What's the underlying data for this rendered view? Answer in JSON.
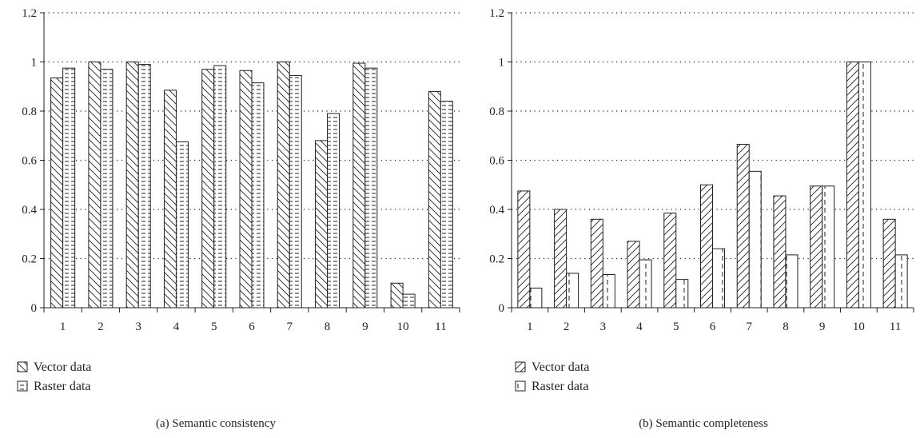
{
  "chart_data": [
    {
      "type": "bar",
      "caption": "(a)  Semantic consistency",
      "categories": [
        "1",
        "2",
        "3",
        "4",
        "5",
        "6",
        "7",
        "8",
        "9",
        "10",
        "11"
      ],
      "series": [
        {
          "name": "Vector data",
          "values": [
            0.935,
            1.0,
            1.0,
            0.885,
            0.97,
            0.965,
            1.0,
            0.68,
            0.995,
            0.1,
            0.88
          ]
        },
        {
          "name": "Raster data",
          "values": [
            0.975,
            0.97,
            0.99,
            0.675,
            0.985,
            0.915,
            0.945,
            0.79,
            0.975,
            0.055,
            0.84
          ]
        }
      ],
      "ylim": [
        0,
        1.2
      ],
      "yticks": [
        "0",
        "0.2",
        "0.4",
        "0.6",
        "0.8",
        "1",
        "1.2"
      ],
      "grid": "horizontal dotted",
      "legend_position": "bottom-left"
    },
    {
      "type": "bar",
      "caption": "(b)  Semantic completeness",
      "categories": [
        "1",
        "2",
        "3",
        "4",
        "5",
        "6",
        "7",
        "8",
        "9",
        "10",
        "11"
      ],
      "series": [
        {
          "name": "Vector data",
          "values": [
            0.475,
            0.4,
            0.36,
            0.27,
            0.385,
            0.5,
            0.665,
            0.455,
            0.495,
            1.0,
            0.36
          ]
        },
        {
          "name": "Raster data",
          "values": [
            0.08,
            0.14,
            0.135,
            0.195,
            0.115,
            0.24,
            0.555,
            0.215,
            0.495,
            1.0,
            0.215
          ]
        }
      ],
      "ylim": [
        0,
        1.2
      ],
      "yticks": [
        "0",
        "0.2",
        "0.4",
        "0.6",
        "0.8",
        "1",
        "1.2"
      ],
      "grid": "horizontal dotted",
      "legend_position": "bottom-left"
    }
  ]
}
